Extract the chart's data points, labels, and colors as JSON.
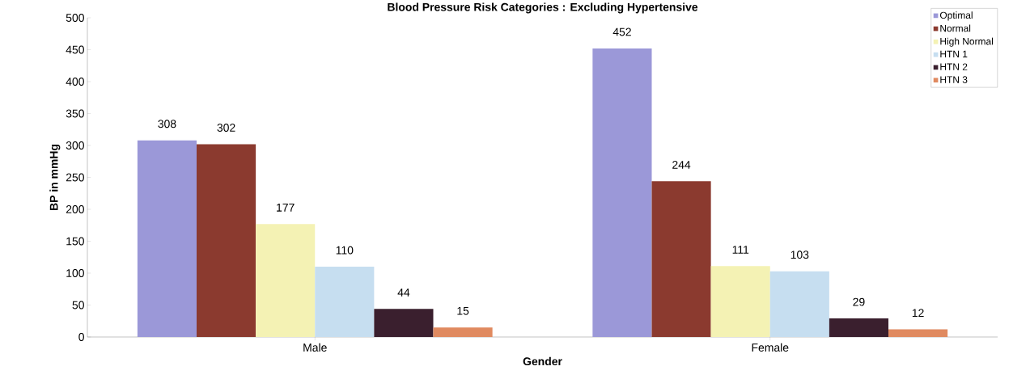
{
  "chart_data": {
    "type": "bar",
    "title": "Blood Pressure Risk Categories : Excluding Hypertensive",
    "xlabel": "Gender",
    "ylabel": "BP in mmHg",
    "categories": [
      "Male",
      "Female"
    ],
    "series": [
      {
        "name": "Optimal",
        "color": "#9b98d8",
        "values": [
          308,
          452
        ]
      },
      {
        "name": "Normal",
        "color": "#8b3a2f",
        "values": [
          302,
          244
        ]
      },
      {
        "name": "High Normal",
        "color": "#f4f2b4",
        "values": [
          177,
          111
        ]
      },
      {
        "name": "HTN 1",
        "color": "#c6def0",
        "values": [
          110,
          103
        ]
      },
      {
        "name": "HTN 2",
        "color": "#3a1f2e",
        "values": [
          44,
          29
        ]
      },
      {
        "name": "HTN 3",
        "color": "#e08a60",
        "values": [
          15,
          12
        ]
      }
    ],
    "ylim": [
      0,
      500
    ],
    "yticks": [
      0,
      50,
      100,
      150,
      200,
      250,
      300,
      350,
      400,
      450,
      500
    ],
    "data_labels": true,
    "legend": "top right",
    "grid": false
  }
}
